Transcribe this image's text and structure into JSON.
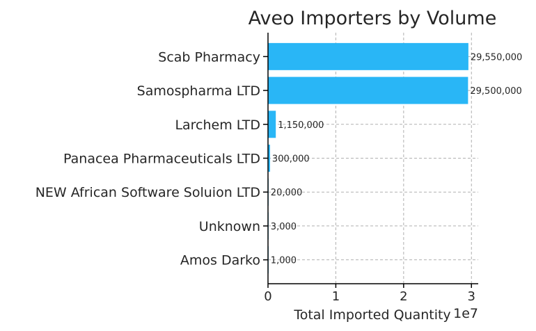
{
  "chart_data": {
    "type": "bar",
    "orientation": "horizontal",
    "title": "Aveo Importers by Volume",
    "xlabel": "Total Imported Quantity",
    "ylabel": "",
    "x_offset_label": "1e7",
    "categories": [
      "Scab Pharmacy",
      "Samospharma LTD",
      "Larchem LTD",
      "Panacea Pharmaceuticals LTD",
      "NEW African Software Soluion LTD",
      "Unknown",
      "Amos Darko"
    ],
    "values": [
      29550000,
      29500000,
      1150000,
      300000,
      20000,
      3000,
      1000
    ],
    "value_labels": [
      "29,550,000",
      "29,500,000",
      "1,150,000",
      "300,000",
      "20,000",
      "3,000",
      "1,000"
    ],
    "xlim": [
      0,
      31000000
    ],
    "xticks": [
      0,
      10000000,
      20000000,
      30000000
    ],
    "xtick_labels": [
      "0",
      "1",
      "2",
      "3"
    ],
    "grid": true,
    "bar_color": "#29b6f6"
  }
}
